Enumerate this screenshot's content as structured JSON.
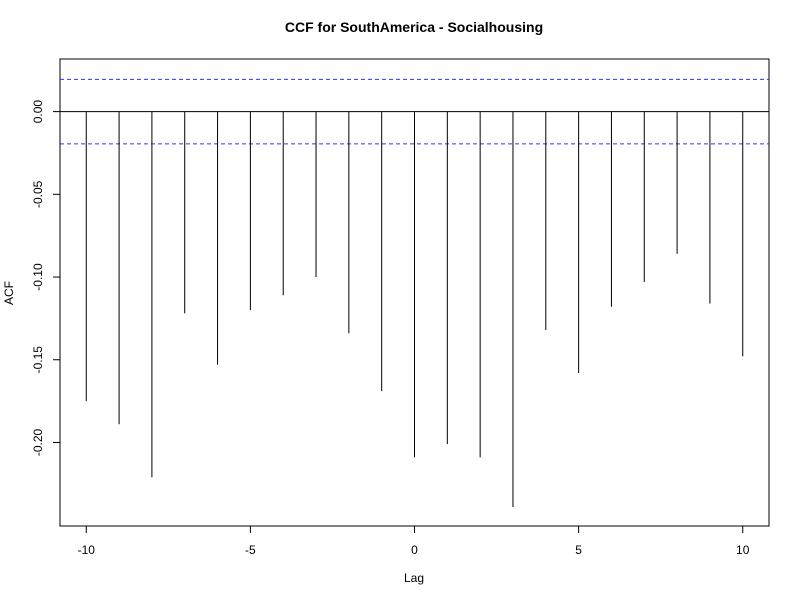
{
  "chart_data": {
    "type": "bar",
    "title": "CCF for SouthAmerica - Socialhousing",
    "xlabel": "Lag",
    "ylabel": "ACF",
    "x": [
      -10,
      -9,
      -8,
      -7,
      -6,
      -5,
      -4,
      -3,
      -2,
      -1,
      0,
      1,
      2,
      3,
      4,
      5,
      6,
      7,
      8,
      9,
      10
    ],
    "values": [
      -0.175,
      -0.189,
      -0.221,
      -0.122,
      -0.153,
      -0.12,
      -0.111,
      -0.1,
      -0.134,
      -0.169,
      -0.209,
      -0.201,
      -0.209,
      -0.239,
      -0.132,
      -0.158,
      -0.118,
      -0.103,
      -0.086,
      -0.116,
      -0.148
    ],
    "confidence_bounds": [
      0.0195,
      -0.0195
    ],
    "xlim": [
      -10.8,
      10.8
    ],
    "ylim": [
      -0.2505,
      0.0318
    ],
    "xticks": [
      -10,
      -5,
      0,
      5,
      10
    ],
    "yticks": [
      0.0,
      -0.05,
      -0.1,
      -0.15,
      -0.2
    ],
    "xtick_labels": [
      "-10",
      "-5",
      "0",
      "5",
      "10"
    ],
    "ytick_labels": [
      "0.00",
      "-0.05",
      "-0.10",
      "-0.15",
      "-0.20"
    ],
    "bound_color": "#3333ff",
    "line_color": "#000000",
    "grid": false
  }
}
